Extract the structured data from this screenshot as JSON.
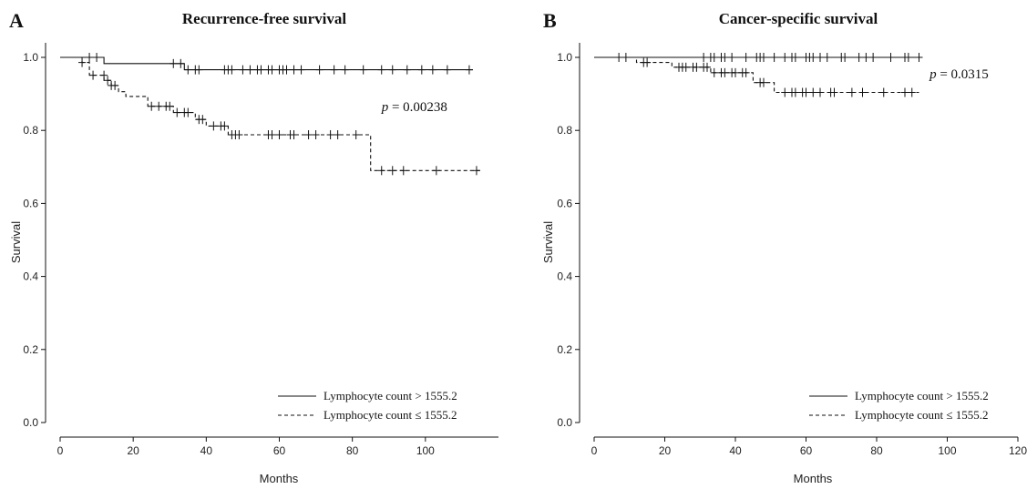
{
  "chart_data": [
    {
      "type": "line",
      "panel_label": "A",
      "title": "Recurrence-free survival",
      "xlabel": "Months",
      "ylabel": "Survival",
      "xlim": [
        0,
        120
      ],
      "ylim": [
        0,
        1.0
      ],
      "x_ticks": [
        0,
        20,
        40,
        60,
        80,
        100
      ],
      "y_ticks": [
        0.0,
        0.2,
        0.4,
        0.6,
        0.8,
        1.0
      ],
      "x_tick_labels": [
        "0",
        "20",
        "40",
        "60",
        "80",
        "100"
      ],
      "y_tick_labels": [
        "0.0",
        "0.2",
        "0.4",
        "0.6",
        "0.8",
        "1.0"
      ],
      "annotation": {
        "italic": "p",
        "text": " = 0.00238",
        "x": 88,
        "y": 0.865
      },
      "legend_position": "bottom-right",
      "series": [
        {
          "name": "Lymphocyte count > 1555.2",
          "style": "solid",
          "steps": [
            [
              0,
              1.0
            ],
            [
              12,
              1.0
            ],
            [
              12,
              0.983
            ],
            [
              34,
              0.983
            ],
            [
              34,
              0.966
            ],
            [
              113,
              0.966
            ]
          ],
          "censored": [
            [
              8,
              1.0
            ],
            [
              10,
              1.0
            ],
            [
              31,
              0.983
            ],
            [
              33,
              0.983
            ],
            [
              35,
              0.966
            ],
            [
              37,
              0.966
            ],
            [
              38,
              0.966
            ],
            [
              45,
              0.966
            ],
            [
              46,
              0.966
            ],
            [
              47,
              0.966
            ],
            [
              50,
              0.966
            ],
            [
              52,
              0.966
            ],
            [
              54,
              0.966
            ],
            [
              55,
              0.966
            ],
            [
              57,
              0.966
            ],
            [
              58,
              0.966
            ],
            [
              60,
              0.966
            ],
            [
              61,
              0.966
            ],
            [
              62,
              0.966
            ],
            [
              64,
              0.966
            ],
            [
              66,
              0.966
            ],
            [
              71,
              0.966
            ],
            [
              75,
              0.966
            ],
            [
              78,
              0.966
            ],
            [
              83,
              0.966
            ],
            [
              88,
              0.966
            ],
            [
              91,
              0.966
            ],
            [
              95,
              0.966
            ],
            [
              99,
              0.966
            ],
            [
              102,
              0.966
            ],
            [
              106,
              0.966
            ],
            [
              112,
              0.966
            ]
          ]
        },
        {
          "name": "Lymphocyte count ≤ 1555.2",
          "style": "dashed",
          "steps": [
            [
              0,
              1.0
            ],
            [
              6,
              1.0
            ],
            [
              6,
              0.986
            ],
            [
              8,
              0.986
            ],
            [
              8,
              0.951
            ],
            [
              12,
              0.951
            ],
            [
              12,
              0.937
            ],
            [
              14,
              0.937
            ],
            [
              14,
              0.923
            ],
            [
              16,
              0.923
            ],
            [
              16,
              0.906
            ],
            [
              18,
              0.906
            ],
            [
              18,
              0.893
            ],
            [
              24,
              0.893
            ],
            [
              24,
              0.866
            ],
            [
              31,
              0.866
            ],
            [
              31,
              0.849
            ],
            [
              37,
              0.849
            ],
            [
              37,
              0.83
            ],
            [
              40,
              0.83
            ],
            [
              40,
              0.812
            ],
            [
              46,
              0.812
            ],
            [
              46,
              0.788
            ],
            [
              85,
              0.788
            ],
            [
              85,
              0.69
            ],
            [
              115,
              0.69
            ]
          ],
          "censored": [
            [
              6,
              0.986
            ],
            [
              9,
              0.951
            ],
            [
              12,
              0.951
            ],
            [
              13,
              0.937
            ],
            [
              14,
              0.923
            ],
            [
              15,
              0.923
            ],
            [
              25,
              0.866
            ],
            [
              27,
              0.866
            ],
            [
              29,
              0.866
            ],
            [
              30,
              0.866
            ],
            [
              32,
              0.849
            ],
            [
              34,
              0.849
            ],
            [
              35,
              0.849
            ],
            [
              38,
              0.83
            ],
            [
              39,
              0.83
            ],
            [
              42,
              0.812
            ],
            [
              44,
              0.812
            ],
            [
              45,
              0.812
            ],
            [
              47,
              0.788
            ],
            [
              48,
              0.788
            ],
            [
              49,
              0.788
            ],
            [
              57,
              0.788
            ],
            [
              58,
              0.788
            ],
            [
              60,
              0.788
            ],
            [
              63,
              0.788
            ],
            [
              64,
              0.788
            ],
            [
              68,
              0.788
            ],
            [
              70,
              0.788
            ],
            [
              74,
              0.788
            ],
            [
              76,
              0.788
            ],
            [
              81,
              0.788
            ],
            [
              88,
              0.69
            ],
            [
              91,
              0.69
            ],
            [
              94,
              0.69
            ],
            [
              103,
              0.69
            ],
            [
              114,
              0.69
            ]
          ]
        }
      ]
    },
    {
      "type": "line",
      "panel_label": "B",
      "title": "Cancer-specific survival",
      "xlabel": "Months",
      "ylabel": "Survival",
      "xlim": [
        0,
        120
      ],
      "ylim": [
        0,
        1.0
      ],
      "x_ticks": [
        0,
        20,
        40,
        60,
        80,
        100,
        120
      ],
      "y_ticks": [
        0.0,
        0.2,
        0.4,
        0.6,
        0.8,
        1.0
      ],
      "x_tick_labels": [
        "0",
        "20",
        "40",
        "60",
        "80",
        "100",
        "120"
      ],
      "y_tick_labels": [
        "0.0",
        "0.2",
        "0.4",
        "0.6",
        "0.8",
        "1.0"
      ],
      "annotation": {
        "italic": "p",
        "text": " = 0.0315",
        "x": 95,
        "y": 0.955
      },
      "legend_position": "bottom-right",
      "series": [
        {
          "name": "Lymphocyte count > 1555.2",
          "style": "solid",
          "steps": [
            [
              0,
              1.0
            ],
            [
              92,
              1.0
            ]
          ],
          "censored": [
            [
              7,
              1.0
            ],
            [
              9,
              1.0
            ],
            [
              31,
              1.0
            ],
            [
              33,
              1.0
            ],
            [
              34,
              1.0
            ],
            [
              36,
              1.0
            ],
            [
              37,
              1.0
            ],
            [
              39,
              1.0
            ],
            [
              43,
              1.0
            ],
            [
              46,
              1.0
            ],
            [
              47,
              1.0
            ],
            [
              48,
              1.0
            ],
            [
              51,
              1.0
            ],
            [
              54,
              1.0
            ],
            [
              56,
              1.0
            ],
            [
              57,
              1.0
            ],
            [
              60,
              1.0
            ],
            [
              61,
              1.0
            ],
            [
              62,
              1.0
            ],
            [
              64,
              1.0
            ],
            [
              66,
              1.0
            ],
            [
              70,
              1.0
            ],
            [
              71,
              1.0
            ],
            [
              75,
              1.0
            ],
            [
              77,
              1.0
            ],
            [
              79,
              1.0
            ],
            [
              84,
              1.0
            ],
            [
              88,
              1.0
            ],
            [
              89,
              1.0
            ],
            [
              92,
              1.0
            ]
          ]
        },
        {
          "name": "Lymphocyte count ≤ 1555.2",
          "style": "dashed",
          "steps": [
            [
              0,
              1.0
            ],
            [
              12,
              1.0
            ],
            [
              12,
              0.986
            ],
            [
              22,
              0.986
            ],
            [
              22,
              0.973
            ],
            [
              33,
              0.973
            ],
            [
              33,
              0.958
            ],
            [
              45,
              0.958
            ],
            [
              45,
              0.931
            ],
            [
              51,
              0.931
            ],
            [
              51,
              0.904
            ],
            [
              92,
              0.904
            ]
          ],
          "censored": [
            [
              14,
              0.986
            ],
            [
              15,
              0.986
            ],
            [
              24,
              0.973
            ],
            [
              25,
              0.973
            ],
            [
              26,
              0.973
            ],
            [
              28,
              0.973
            ],
            [
              29,
              0.973
            ],
            [
              31,
              0.973
            ],
            [
              32,
              0.973
            ],
            [
              34,
              0.958
            ],
            [
              36,
              0.958
            ],
            [
              37,
              0.958
            ],
            [
              39,
              0.958
            ],
            [
              40,
              0.958
            ],
            [
              42,
              0.958
            ],
            [
              43,
              0.958
            ],
            [
              47,
              0.931
            ],
            [
              48,
              0.931
            ],
            [
              54,
              0.904
            ],
            [
              56,
              0.904
            ],
            [
              57,
              0.904
            ],
            [
              59,
              0.904
            ],
            [
              60,
              0.904
            ],
            [
              62,
              0.904
            ],
            [
              64,
              0.904
            ],
            [
              67,
              0.904
            ],
            [
              68,
              0.904
            ],
            [
              73,
              0.904
            ],
            [
              76,
              0.904
            ],
            [
              82,
              0.904
            ],
            [
              88,
              0.904
            ],
            [
              90,
              0.904
            ]
          ]
        }
      ]
    }
  ]
}
